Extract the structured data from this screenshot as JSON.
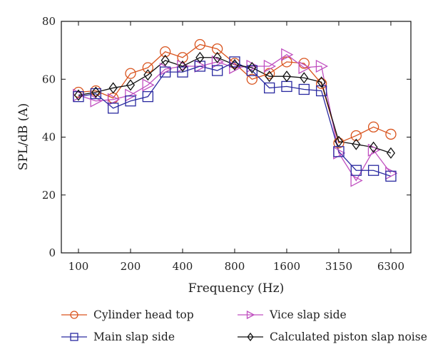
{
  "chart_data": {
    "type": "line",
    "xlabel": "Frequency (Hz)",
    "ylabel": "SPL/dB (A)",
    "ylim": [
      0,
      80
    ],
    "yticks": [
      0,
      20,
      40,
      60,
      80
    ],
    "categories": [
      "100",
      "125",
      "160",
      "200",
      "250",
      "315",
      "400",
      "500",
      "630",
      "800",
      "1000",
      "1250",
      "1600",
      "2000",
      "2500",
      "3150",
      "4000",
      "5000",
      "6300"
    ],
    "xtick_labels": [
      "100",
      "200",
      "400",
      "800",
      "1600",
      "3150",
      "6300"
    ],
    "xtick_categories": [
      "100",
      "200",
      "400",
      "800",
      "1600",
      "3150",
      "6300"
    ],
    "grid": false,
    "legend_position": "bottom",
    "series": [
      {
        "name": "Cylinder head top",
        "color": "#d9541e",
        "marker": "circle",
        "values": [
          55.5,
          56,
          53.5,
          62,
          64,
          69.5,
          67.5,
          72,
          70.5,
          65.5,
          60,
          62,
          66,
          65.5,
          58.5,
          38,
          40.5,
          43.5,
          41
        ]
      },
      {
        "name": "Vice slap side",
        "color": "#c050c0",
        "marker": "triangle-right",
        "values": [
          54.5,
          52.5,
          53,
          54.5,
          58,
          63.5,
          64.5,
          64.5,
          66,
          64,
          64.5,
          64.5,
          68.5,
          64,
          64.5,
          34.5,
          25,
          35.5,
          27.5
        ]
      },
      {
        "name": "Main slap side",
        "color": "#2a2aa0",
        "marker": "square",
        "values": [
          54,
          55,
          50,
          52.5,
          54,
          62.5,
          62.5,
          64.5,
          63,
          66,
          63,
          57,
          57.5,
          56.5,
          56,
          35,
          28.5,
          28.5,
          26.5
        ]
      },
      {
        "name": "Calculated piston slap noise",
        "color": "#111111",
        "marker": "diamond",
        "values": [
          54.5,
          55.5,
          57,
          58,
          61.5,
          66.5,
          64.5,
          67.5,
          67.5,
          65,
          64,
          61,
          61,
          60.5,
          59,
          38.5,
          37.5,
          36.5,
          34.5
        ]
      }
    ]
  }
}
